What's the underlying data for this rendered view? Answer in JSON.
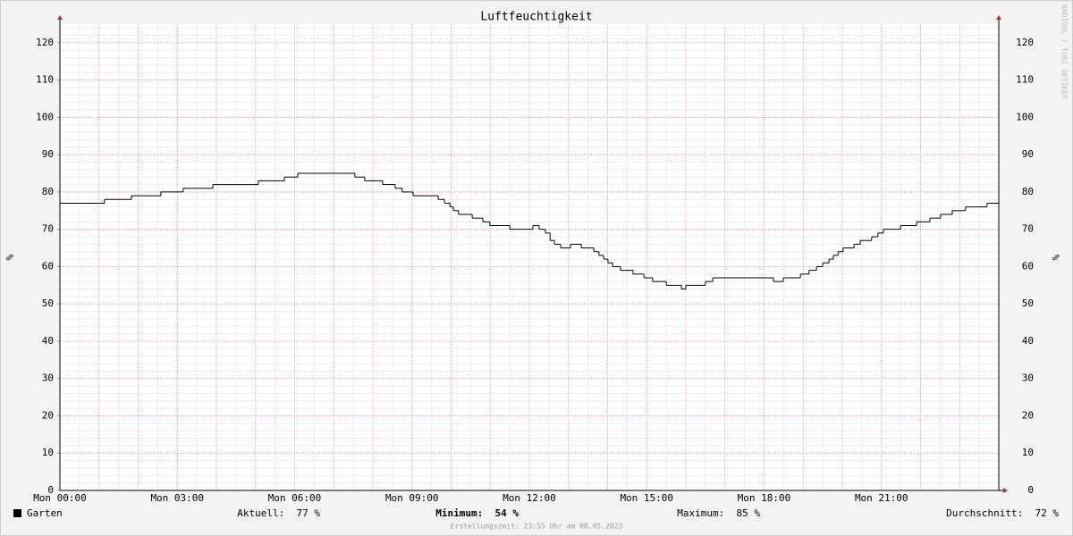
{
  "chart_data": {
    "type": "line",
    "title": "Luftfeuchtigkeit",
    "y_label": "%",
    "watermark": "RRDTOOL / TOBI OETIKER",
    "xlim": [
      0,
      24
    ],
    "xticks": [
      {
        "value": 0,
        "label": "Mon 00:00"
      },
      {
        "value": 3,
        "label": "Mon 03:00"
      },
      {
        "value": 6,
        "label": "Mon 06:00"
      },
      {
        "value": 9,
        "label": "Mon 09:00"
      },
      {
        "value": 12,
        "label": "Mon 12:00"
      },
      {
        "value": 15,
        "label": "Mon 15:00"
      },
      {
        "value": 18,
        "label": "Mon 18:00"
      },
      {
        "value": 21,
        "label": "Mon 21:00"
      }
    ],
    "ylim": [
      0,
      125
    ],
    "yticks": [
      0,
      10,
      20,
      30,
      40,
      50,
      60,
      70,
      80,
      90,
      100,
      110,
      120
    ],
    "grid": true,
    "step": true,
    "series": [
      {
        "name": "Garten",
        "color": "#000000",
        "x": [
          0,
          1.14,
          1.83,
          2.58,
          3.15,
          3.91,
          5.07,
          5.74,
          6.08,
          7.54,
          7.79,
          8.25,
          8.57,
          8.75,
          9.03,
          9.67,
          9.83,
          9.97,
          10.06,
          10.19,
          10.54,
          10.81,
          10.99,
          11.5,
          12.09,
          12.25,
          12.41,
          12.53,
          12.64,
          12.8,
          13.05,
          13.33,
          13.65,
          13.78,
          13.9,
          14.01,
          14.13,
          14.33,
          14.65,
          14.93,
          15.15,
          15.5,
          15.89,
          16.0,
          16.5,
          16.69,
          18.24,
          18.49,
          18.93,
          19.15,
          19.34,
          19.5,
          19.66,
          19.77,
          19.89,
          20.02,
          20.3,
          20.46,
          20.75,
          20.91,
          21.05,
          21.49,
          21.9,
          22.24,
          22.51,
          22.81,
          23.15,
          23.7,
          24
        ],
        "values": [
          77,
          78,
          79,
          80,
          81,
          82,
          83,
          84,
          85,
          84,
          83,
          82,
          81,
          80,
          79,
          78,
          77,
          76,
          75,
          74,
          73,
          72,
          71,
          70,
          71,
          70,
          69,
          67,
          66,
          65,
          66,
          65,
          64,
          63,
          62,
          61,
          60,
          59,
          58,
          57,
          56,
          55,
          54,
          55,
          56,
          57,
          56,
          57,
          58,
          59,
          60,
          61,
          62,
          63,
          64,
          65,
          66,
          67,
          68,
          69,
          70,
          71,
          72,
          73,
          74,
          75,
          76,
          77,
          77
        ]
      }
    ],
    "stats": [
      {
        "label": "Aktuell:",
        "value": 77,
        "unit": "%"
      },
      {
        "label": "Minimum:",
        "value": 54,
        "unit": "%"
      },
      {
        "label": "Maximum:",
        "value": 85,
        "unit": "%"
      },
      {
        "label": "Durchschnitt:",
        "value": 72,
        "unit": "%"
      }
    ],
    "footer": "Erstellungszeit: 23:55 Uhr am 08.05.2023"
  }
}
